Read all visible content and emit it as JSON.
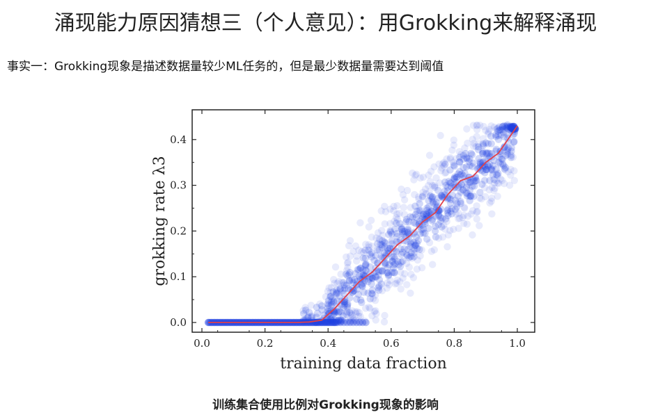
{
  "slide": {
    "title": "涌现能力原因猜想三（个人意见）：用Grokking来解释涌现",
    "fact": "事实一：Grokking现象是描述数据量较少ML任务的，但是最少数据量需要达到阈值",
    "caption": "训练集合使用比例对Grokking现象的影响"
  },
  "chart_data": {
    "type": "scatter",
    "xlabel": "training data fraction",
    "ylabel": "grokking rate λ3",
    "xlim": [
      0.0,
      1.0
    ],
    "ylim": [
      0.0,
      0.43
    ],
    "xticks": [
      0.0,
      0.2,
      0.4,
      0.6,
      0.8,
      1.0
    ],
    "yticks": [
      0.0,
      0.1,
      0.2,
      0.3,
      0.4
    ],
    "grid": false,
    "colors": {
      "points": "#1f3fe0",
      "mean_line": "#e0404a"
    },
    "series": [
      {
        "kind": "mean_line",
        "x": [
          0.02,
          0.1,
          0.2,
          0.3,
          0.34,
          0.38,
          0.42,
          0.46,
          0.5,
          0.54,
          0.58,
          0.62,
          0.66,
          0.7,
          0.74,
          0.78,
          0.82,
          0.86,
          0.9,
          0.94,
          0.98,
          1.0
        ],
        "y": [
          0.0,
          0.0,
          0.0,
          0.0,
          0.001,
          0.005,
          0.03,
          0.06,
          0.09,
          0.11,
          0.14,
          0.17,
          0.19,
          0.22,
          0.24,
          0.28,
          0.31,
          0.32,
          0.35,
          0.37,
          0.41,
          0.43
        ]
      }
    ]
  }
}
